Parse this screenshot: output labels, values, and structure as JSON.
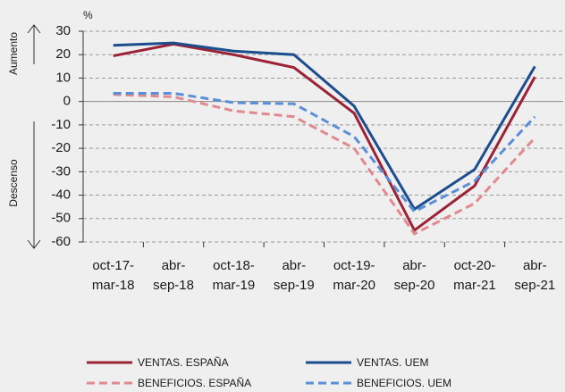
{
  "chart_data": {
    "type": "line",
    "y_unit": "%",
    "annotations": [
      "Aumento",
      "Descenso"
    ],
    "categories": [
      [
        "oct-17-",
        "mar-18"
      ],
      [
        "abr-",
        "sep-18"
      ],
      [
        "oct-18-",
        "mar-19"
      ],
      [
        "abr-",
        "sep-19"
      ],
      [
        "oct-19-",
        "mar-20"
      ],
      [
        "abr-",
        "sep-20"
      ],
      [
        "oct-20-",
        "mar-21"
      ],
      [
        "abr-",
        "sep-21"
      ]
    ],
    "series": [
      {
        "name": "VENTAS. ESPAÑA",
        "color": "#9b2335",
        "linestyle": "solid",
        "values": [
          19.5,
          24.5,
          20,
          14.5,
          -5,
          -55,
          -36,
          10.5
        ]
      },
      {
        "name": "VENTAS. UEM",
        "color": "#1c4d8c",
        "linestyle": "solid",
        "values": [
          24,
          25,
          21.5,
          20,
          -2,
          -46,
          -29,
          15
        ]
      },
      {
        "name": "BENEFICIOS. ESPAÑA",
        "color": "#e08a90",
        "linestyle": "dashed",
        "values": [
          3,
          2,
          -4,
          -6.5,
          -20,
          -56.5,
          -43.5,
          -15.5
        ]
      },
      {
        "name": "BENEFICIOS. UEM",
        "color": "#5a8fd8",
        "linestyle": "dashed",
        "values": [
          3.5,
          3.5,
          -0.5,
          -1,
          -15,
          -47,
          -34,
          -6.5
        ]
      }
    ],
    "ylim": [
      -60,
      30
    ],
    "yticks": [
      -60,
      -50,
      -40,
      -30,
      -20,
      -10,
      0,
      10,
      20,
      30
    ],
    "grid": true,
    "legend": "bottom"
  }
}
